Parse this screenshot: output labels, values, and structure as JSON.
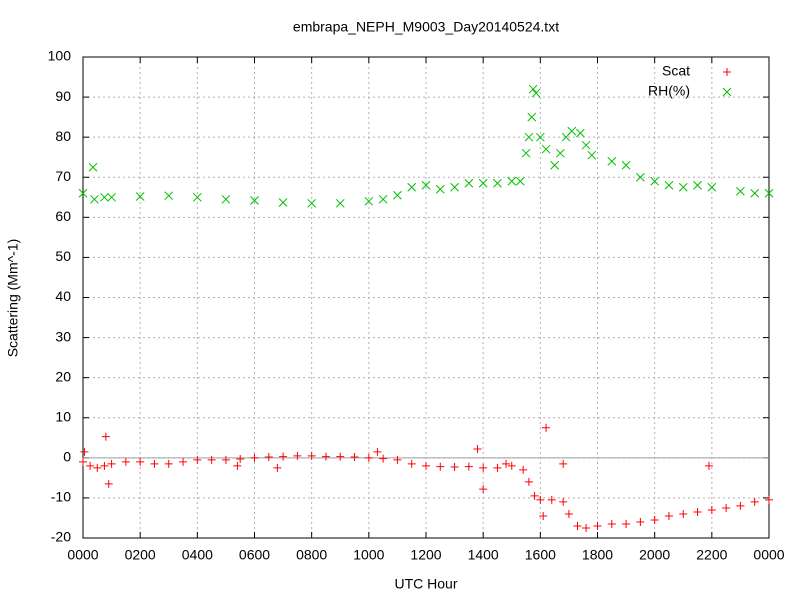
{
  "chart_data": {
    "type": "scatter",
    "title": "embrapa_NEPH_M9003_Day20140524.txt",
    "x_label": "UTC Hour",
    "y_label": "Scattering (Mm^-1)",
    "xlim": [
      0,
      24
    ],
    "xticks": [
      {
        "value": 0,
        "label": "0000"
      },
      {
        "value": 2,
        "label": "0200"
      },
      {
        "value": 4,
        "label": "0400"
      },
      {
        "value": 6,
        "label": "0600"
      },
      {
        "value": 8,
        "label": "0800"
      },
      {
        "value": 10,
        "label": "1000"
      },
      {
        "value": 12,
        "label": "1200"
      },
      {
        "value": 14,
        "label": "1400"
      },
      {
        "value": 16,
        "label": "1600"
      },
      {
        "value": 18,
        "label": "1800"
      },
      {
        "value": 20,
        "label": "2000"
      },
      {
        "value": 22,
        "label": "2200"
      },
      {
        "value": 24,
        "label": "0000"
      }
    ],
    "ylim": [
      -20,
      100
    ],
    "yticks": [
      -20,
      -10,
      0,
      10,
      20,
      30,
      40,
      50,
      60,
      70,
      80,
      90,
      100
    ],
    "grid": true,
    "legend": "top-right",
    "series": [
      {
        "name": "Scat",
        "color": "#ff0000",
        "marker": "plus",
        "x": [
          0,
          0.25,
          0.5,
          0.75,
          1,
          1.5,
          2,
          2.5,
          3,
          3.5,
          4,
          4.5,
          5,
          5.5,
          6,
          6.5,
          7,
          7.5,
          8,
          8.5,
          9,
          9.5,
          10,
          10.5,
          11,
          11.5,
          12,
          12.5,
          13,
          13.5,
          14,
          14.5,
          14.8,
          15,
          15.4,
          15.6,
          15.8,
          16,
          16.4,
          16.8,
          17,
          17.3,
          17.6,
          18,
          18.5,
          19,
          19.5,
          20,
          20.5,
          21,
          21.5,
          22,
          22.5,
          23,
          23.5,
          24,
          0.05,
          0.8,
          0.9,
          13.8,
          14,
          16.2,
          16.8,
          6.8,
          5.4,
          21.9,
          16.1,
          10.3
        ],
        "values": [
          -1,
          -2,
          -2.5,
          -2,
          -1.5,
          -1,
          -1,
          -1.5,
          -1.5,
          -1,
          -0.5,
          -0.5,
          -0.5,
          -0.3,
          0,
          0.2,
          0.3,
          0.5,
          0.5,
          0.3,
          0.3,
          0.2,
          0,
          -0.2,
          -0.5,
          -1.5,
          -2,
          -2.2,
          -2.3,
          -2.2,
          -2.5,
          -2.5,
          -1.5,
          -2,
          -3,
          -6,
          -9.5,
          -10.5,
          -10.5,
          -11,
          -14,
          -17,
          -17.5,
          -17,
          -16.5,
          -16.5,
          -16,
          -15.5,
          -14.5,
          -14,
          -13.5,
          -13,
          -12.5,
          -12,
          -11,
          -10.5,
          1.5,
          5.3,
          -6.5,
          2.2,
          -7.8,
          7.5,
          -1.5,
          -2.5,
          -2,
          -2,
          -14.5,
          1.5
        ]
      },
      {
        "name": "RH(%)",
        "color": "#00c000",
        "marker": "cross",
        "x": [
          0,
          0.35,
          0.4,
          0.75,
          1,
          2,
          3,
          4,
          5,
          6,
          7,
          8,
          9,
          10,
          10.5,
          11,
          11.5,
          12,
          12.5,
          13,
          13.5,
          14,
          14.5,
          15,
          15.3,
          15.5,
          15.6,
          15.7,
          15.75,
          15.85,
          16,
          16.2,
          16.5,
          16.7,
          16.9,
          17.1,
          17.4,
          17.6,
          17.8,
          18.5,
          19,
          19.5,
          20,
          20.5,
          21,
          21.5,
          22,
          23,
          23.5,
          24
        ],
        "values": [
          66,
          72.5,
          64.5,
          65,
          65,
          65.2,
          65.4,
          65,
          64.5,
          64.2,
          63.7,
          63.5,
          63.5,
          64,
          64.5,
          65.5,
          67.5,
          68,
          67,
          67.5,
          68.5,
          68.5,
          68.5,
          69,
          69,
          76,
          80,
          85,
          92,
          91,
          80,
          77,
          73,
          76,
          80,
          81.5,
          81,
          78,
          75.5,
          74,
          73,
          70,
          69,
          68,
          67.5,
          68,
          67.5,
          66.5,
          66,
          66
        ]
      }
    ]
  }
}
